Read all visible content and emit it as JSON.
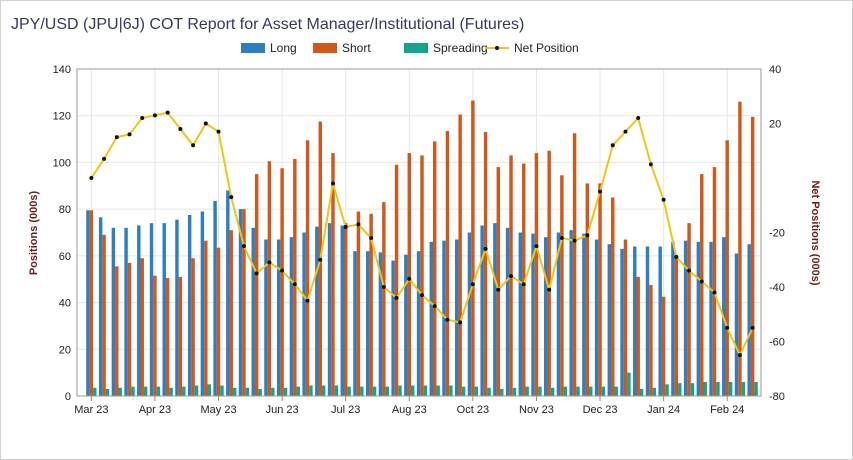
{
  "colors": {
    "long": "#2e7fc1",
    "short": "#d2571a",
    "spreading": "#17a388",
    "net": "#f2c417",
    "net_marker": "#111111",
    "grid": "#e6e6e6",
    "axis_title": "#6b1d1d"
  },
  "chart_data": {
    "type": "bar",
    "title": "JPY/USD (JPU|6J) COT Report for Asset Manager/Institutional (Futures)",
    "legend_position": "top-center",
    "grid": true,
    "legend": [
      {
        "key": "long",
        "label": "Long",
        "kind": "bar"
      },
      {
        "key": "short",
        "label": "Short",
        "kind": "bar"
      },
      {
        "key": "spreading",
        "label": "Spreading",
        "kind": "bar"
      },
      {
        "key": "net",
        "label": "Net Position",
        "kind": "line"
      }
    ],
    "ylabel": "Positions (000s)",
    "y2label": "Net Positions (000s)",
    "ylim": [
      0,
      140
    ],
    "y2lim": [
      -80,
      40
    ],
    "yticks": [
      "0",
      "20",
      "40",
      "60",
      "80",
      "100",
      "120",
      "140"
    ],
    "y2ticks": [
      "-80",
      "-60",
      "-40",
      "-20",
      "",
      "20",
      "40"
    ],
    "x_tick_labels": [
      "Mar 23",
      "Apr 23",
      "May 23",
      "Jun 23",
      "Jul 23",
      "Aug 23",
      "Oct 23",
      "Nov 23",
      "Dec 23",
      "Jan 24",
      "Feb 24"
    ],
    "x_tick_week_index": [
      0,
      5,
      10,
      15,
      20,
      25,
      30,
      35,
      40,
      45,
      50
    ],
    "series": [
      {
        "key": "long",
        "name": "Long",
        "values": [
          79.5,
          76.5,
          72,
          72,
          73,
          74,
          74,
          75.5,
          77.5,
          79,
          83.5,
          88,
          80,
          72,
          67,
          67,
          68,
          70,
          72.5,
          74,
          73,
          62,
          62,
          61.5,
          58,
          60.5,
          62,
          66,
          66.5,
          67,
          70,
          73,
          74,
          72,
          70,
          69.5,
          68,
          70,
          71,
          69.5,
          67,
          65,
          63,
          64,
          64,
          64,
          66,
          66.5,
          66,
          66,
          68,
          61,
          65
        ]
      },
      {
        "key": "short",
        "name": "Short",
        "values": [
          79.5,
          69,
          55.5,
          57,
          59,
          51.5,
          50.5,
          51,
          59,
          66.5,
          63.5,
          71,
          80,
          95,
          100.5,
          97.5,
          101.5,
          109.5,
          117.5,
          104,
          74,
          79,
          78,
          83,
          99,
          104,
          103,
          109,
          113.5,
          120.5,
          126.5,
          113,
          98,
          103,
          99.5,
          104,
          105,
          94.5,
          112.5,
          91,
          91,
          85,
          67,
          51,
          47.5,
          42.5,
          60,
          74,
          95,
          98,
          109.5,
          126,
          119.5
        ]
      },
      {
        "key": "spreading",
        "name": "Spreading",
        "values": [
          3.5,
          3,
          3.5,
          4,
          4,
          4,
          3.5,
          4,
          4.5,
          5,
          4.5,
          3.5,
          3.5,
          3,
          3.5,
          3.5,
          4,
          4.5,
          4.5,
          4.5,
          4,
          4,
          4,
          4,
          4.5,
          4.5,
          4.5,
          4.5,
          4.5,
          4,
          4,
          3.5,
          3,
          3.5,
          4,
          4,
          3.5,
          4,
          4,
          4,
          4,
          4,
          10,
          3,
          3.5,
          5,
          5.5,
          5.5,
          6,
          6,
          6,
          6,
          6
        ]
      },
      {
        "key": "net",
        "name": "Net Position",
        "values": [
          0,
          7,
          15,
          16,
          22,
          23,
          24,
          18,
          12,
          20,
          17,
          -7,
          -25,
          -35,
          -31,
          -34,
          -39,
          -45,
          -30,
          -2,
          -18,
          -17,
          -22,
          -40,
          -44,
          -37,
          -43,
          -47,
          -52,
          -53,
          -39,
          -26,
          -41,
          -36,
          -39,
          -25,
          -41,
          -22,
          -23,
          -21,
          -5,
          12,
          17,
          22,
          5,
          -8,
          -29,
          -34,
          -38,
          -42,
          -55,
          -65,
          -55
        ]
      }
    ]
  }
}
